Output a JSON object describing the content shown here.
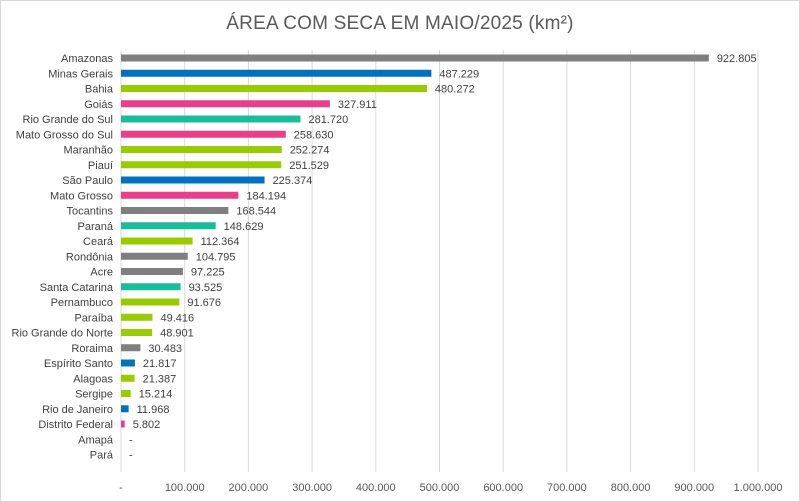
{
  "chart_data": {
    "type": "bar",
    "orientation": "horizontal",
    "title": "ÁREA COM SECA EM MAIO/2025 (km²)",
    "xlim": [
      0,
      1000000
    ],
    "grid": true,
    "x_ticks": [
      {
        "value": 0,
        "label": "-"
      },
      {
        "value": 100000,
        "label": "100.000"
      },
      {
        "value": 200000,
        "label": "200.000"
      },
      {
        "value": 300000,
        "label": "300.000"
      },
      {
        "value": 400000,
        "label": "400.000"
      },
      {
        "value": 500000,
        "label": "500.000"
      },
      {
        "value": 600000,
        "label": "600.000"
      },
      {
        "value": 700000,
        "label": "700.000"
      },
      {
        "value": 800000,
        "label": "800.000"
      },
      {
        "value": 900000,
        "label": "900.000"
      },
      {
        "value": 1000000,
        "label": "1.000.000"
      }
    ],
    "bars": [
      {
        "category": "Amazonas",
        "value": 922805,
        "label": "922.805",
        "color": "#7f7f7f"
      },
      {
        "category": "Minas Gerais",
        "value": 487229,
        "label": "487.229",
        "color": "#0070c0"
      },
      {
        "category": "Bahia",
        "value": 480272,
        "label": "480.272",
        "color": "#99cc00"
      },
      {
        "category": "Goiás",
        "value": 327911,
        "label": "327.911",
        "color": "#e83e8c"
      },
      {
        "category": "Rio Grande do Sul",
        "value": 281720,
        "label": "281.720",
        "color": "#1abc9c"
      },
      {
        "category": "Mato Grosso do Sul",
        "value": 258630,
        "label": "258.630",
        "color": "#e83e8c"
      },
      {
        "category": "Maranhão",
        "value": 252274,
        "label": "252.274",
        "color": "#99cc00"
      },
      {
        "category": "Piauí",
        "value": 251529,
        "label": "251.529",
        "color": "#99cc00"
      },
      {
        "category": "São Paulo",
        "value": 225374,
        "label": "225.374",
        "color": "#0070c0"
      },
      {
        "category": "Mato Grosso",
        "value": 184194,
        "label": "184.194",
        "color": "#e83e8c"
      },
      {
        "category": "Tocantins",
        "value": 168544,
        "label": "168.544",
        "color": "#7f7f7f"
      },
      {
        "category": "Paraná",
        "value": 148629,
        "label": "148.629",
        "color": "#1abc9c"
      },
      {
        "category": "Ceará",
        "value": 112364,
        "label": "112.364",
        "color": "#99cc00"
      },
      {
        "category": "Rondônia",
        "value": 104795,
        "label": "104.795",
        "color": "#7f7f7f"
      },
      {
        "category": "Acre",
        "value": 97225,
        "label": "97.225",
        "color": "#7f7f7f"
      },
      {
        "category": "Santa Catarina",
        "value": 93525,
        "label": "93.525",
        "color": "#1abc9c"
      },
      {
        "category": "Pernambuco",
        "value": 91676,
        "label": "91.676",
        "color": "#99cc00"
      },
      {
        "category": "Paraíba",
        "value": 49416,
        "label": "49.416",
        "color": "#99cc00"
      },
      {
        "category": "Rio Grande do Norte",
        "value": 48901,
        "label": "48.901",
        "color": "#99cc00"
      },
      {
        "category": "Roraima",
        "value": 30483,
        "label": "30.483",
        "color": "#7f7f7f"
      },
      {
        "category": "Espírito Santo",
        "value": 21817,
        "label": "21.817",
        "color": "#0070c0"
      },
      {
        "category": "Alagoas",
        "value": 21387,
        "label": "21.387",
        "color": "#99cc00"
      },
      {
        "category": "Sergipe",
        "value": 15214,
        "label": "15.214",
        "color": "#99cc00"
      },
      {
        "category": "Rio de Janeiro",
        "value": 11968,
        "label": "11.968",
        "color": "#0070c0"
      },
      {
        "category": "Distrito Federal",
        "value": 5802,
        "label": "5.802",
        "color": "#e83e8c"
      },
      {
        "category": "Amapá",
        "value": 0,
        "label": "-",
        "color": "#7f7f7f"
      },
      {
        "category": "Pará",
        "value": 0,
        "label": "-",
        "color": "#7f7f7f"
      }
    ]
  }
}
